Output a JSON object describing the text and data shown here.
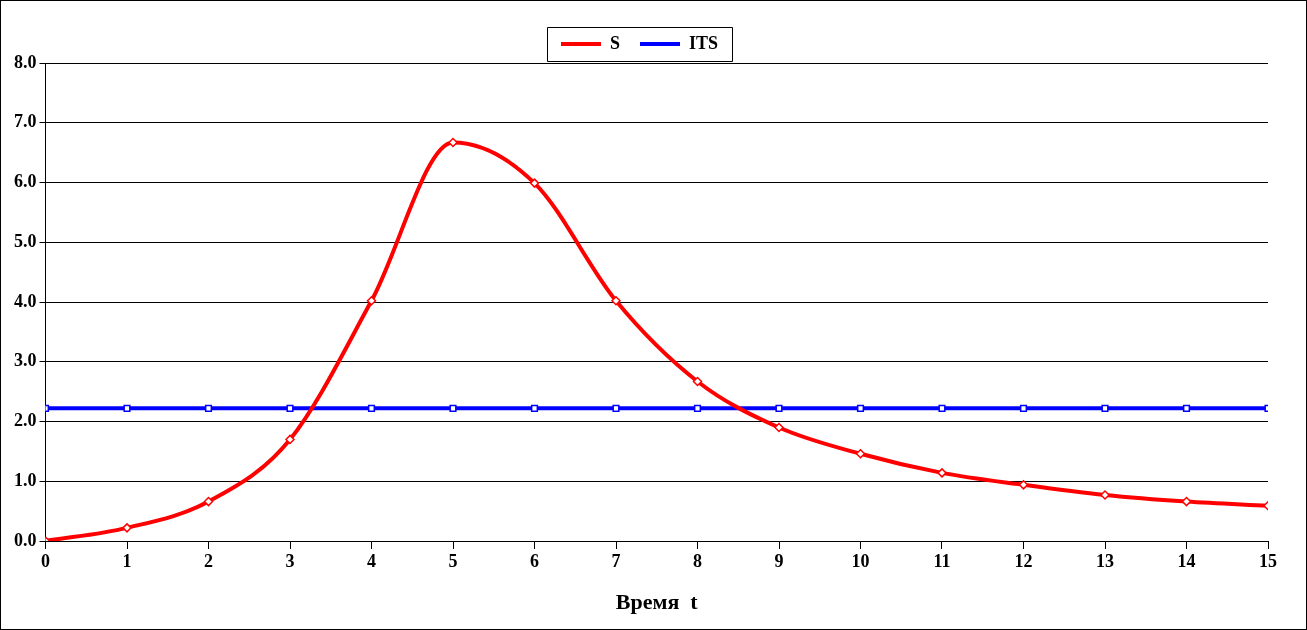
{
  "chart_data": {
    "type": "line",
    "xlabel": "Время  t",
    "x": [
      0,
      1,
      2,
      3,
      4,
      5,
      6,
      7,
      8,
      9,
      10,
      11,
      12,
      13,
      14,
      15
    ],
    "xlim": [
      0,
      15
    ],
    "xticks": [
      0,
      1,
      2,
      3,
      4,
      5,
      6,
      7,
      8,
      9,
      10,
      11,
      12,
      13,
      14,
      15
    ],
    "ylim": [
      0,
      8
    ],
    "yticks": [
      {
        "value": 0,
        "label": "0.0"
      },
      {
        "value": 1,
        "label": "1.0"
      },
      {
        "value": 2,
        "label": "2.0"
      },
      {
        "value": 3,
        "label": "3.0"
      },
      {
        "value": 4,
        "label": "4.0"
      },
      {
        "value": 5,
        "label": "5.0"
      },
      {
        "value": 6,
        "label": "6.0"
      },
      {
        "value": 7,
        "label": "7.0"
      },
      {
        "value": 8,
        "label": "8.0"
      }
    ],
    "grid": "y",
    "legend": "top",
    "line_style": "solid",
    "series": [
      {
        "name": "S",
        "color": "#ff0000",
        "marker": "diamond",
        "values": [
          0,
          0.22,
          0.66,
          1.7,
          4.02,
          6.67,
          5.99,
          4.02,
          2.67,
          1.9,
          1.46,
          1.14,
          0.94,
          0.77,
          0.66,
          0.59
        ]
      },
      {
        "name": "ITS",
        "color": "#0000ff",
        "marker": "square",
        "values": [
          2.22,
          2.22,
          2.22,
          2.22,
          2.22,
          2.22,
          2.22,
          2.22,
          2.22,
          2.22,
          2.22,
          2.22,
          2.22,
          2.22,
          2.22,
          2.22
        ]
      }
    ]
  }
}
